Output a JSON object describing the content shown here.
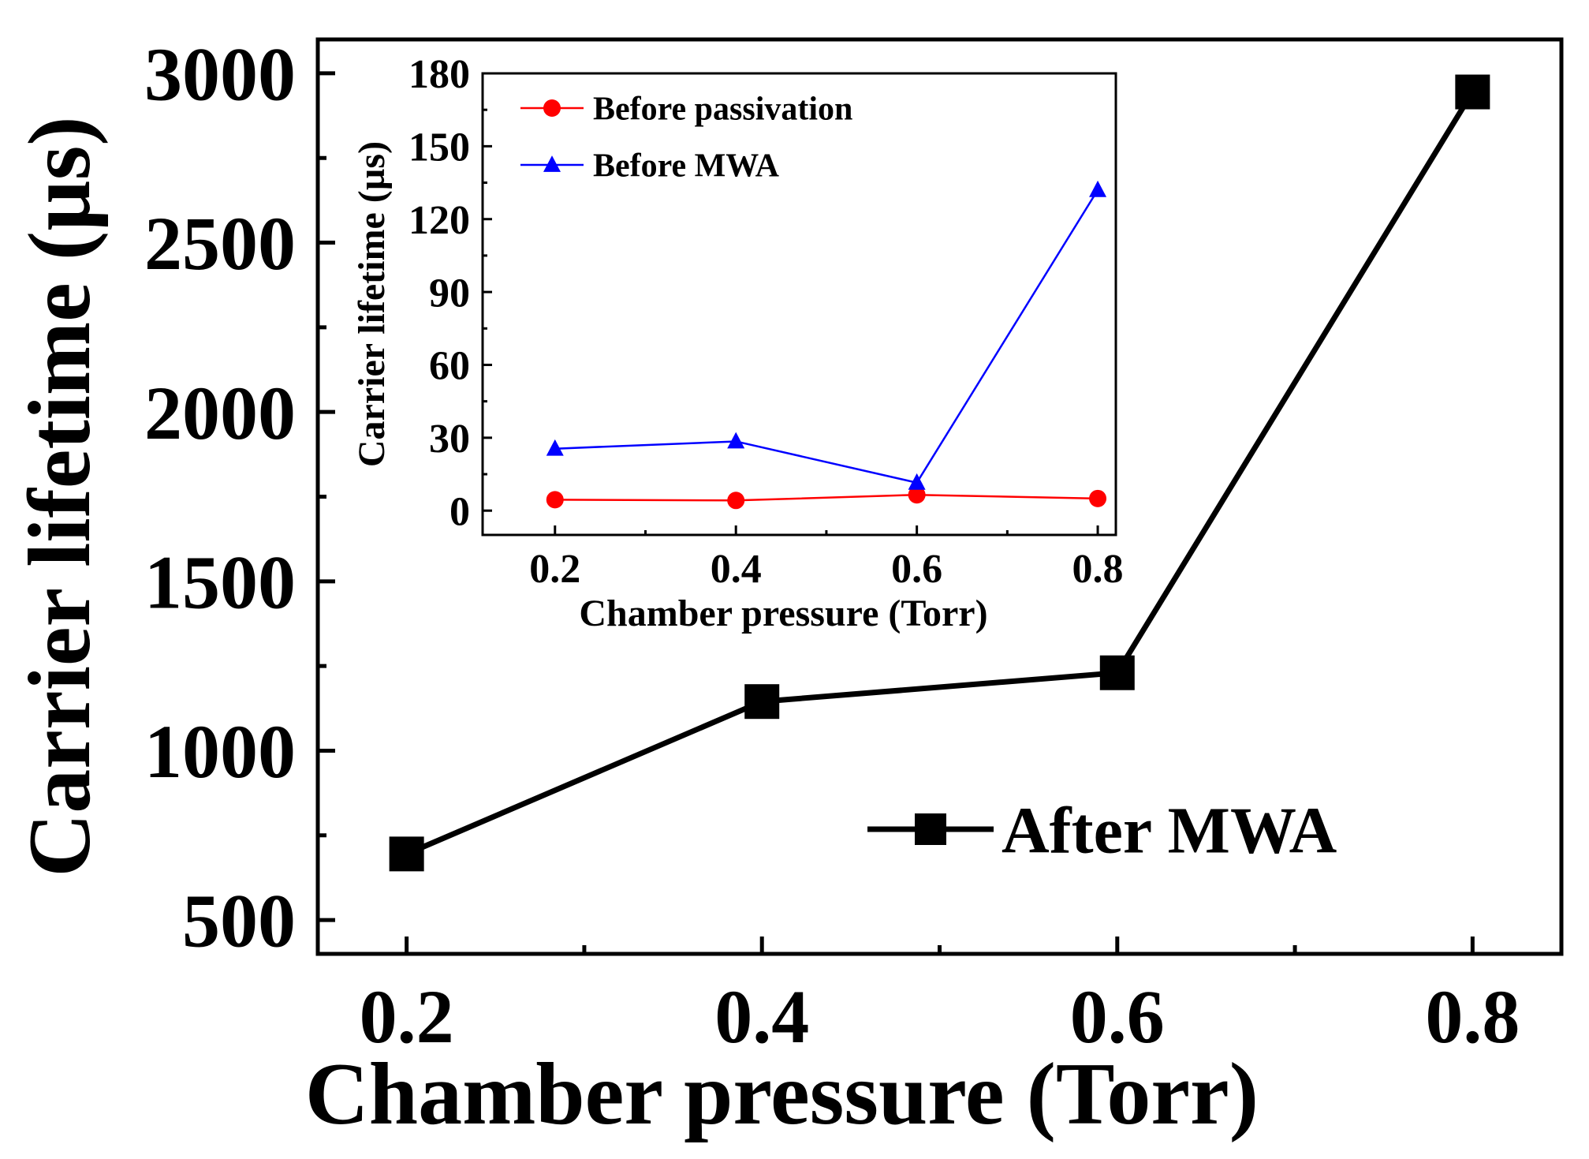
{
  "chart_data": [
    {
      "id": "main",
      "type": "line",
      "xlabel": "Chamber pressure (Torr)",
      "ylabel": "Carrier lifetime (µs)",
      "xlim": [
        0.15,
        0.85
      ],
      "ylim": [
        400,
        3100
      ],
      "xticks": [
        0.2,
        0.4,
        0.6,
        0.8
      ],
      "xtick_labels": [
        "0.2",
        "0.4",
        "0.6",
        "0.8"
      ],
      "yticks": [
        500,
        1000,
        1500,
        2000,
        2500,
        3000
      ],
      "ytick_labels": [
        "500",
        "1000",
        "1500",
        "2000",
        "2500",
        "3000"
      ],
      "legend_position": "center-right",
      "series": [
        {
          "name": "After MWA",
          "color": "#000000",
          "marker": "square",
          "x": [
            0.2,
            0.4,
            0.6,
            0.8
          ],
          "y": [
            695,
            1145,
            1230,
            2945
          ]
        }
      ]
    },
    {
      "id": "inset",
      "type": "line",
      "xlabel": "Chamber pressure (Torr)",
      "ylabel": "Carrier lifetime (µs)",
      "xlim": [
        0.12,
        0.82
      ],
      "ylim": [
        -10,
        180
      ],
      "xticks": [
        0.2,
        0.4,
        0.6,
        0.8
      ],
      "xtick_labels": [
        "0.2",
        "0.4",
        "0.6",
        "0.8"
      ],
      "yticks": [
        0,
        30,
        60,
        90,
        120,
        150,
        180
      ],
      "ytick_labels": [
        "0",
        "30",
        "60",
        "90",
        "120",
        "150",
        "180"
      ],
      "legend_position": "top-left",
      "series": [
        {
          "name": "Before passivation",
          "color": "#ff0000",
          "marker": "circle",
          "x": [
            0.2,
            0.4,
            0.6,
            0.8
          ],
          "y": [
            4.5,
            4.2,
            6.5,
            5.0
          ]
        },
        {
          "name": "Before MWA",
          "color": "#0000ff",
          "marker": "triangle",
          "x": [
            0.2,
            0.4,
            0.6,
            0.8
          ],
          "y": [
            25.5,
            28.5,
            11.5,
            132
          ]
        }
      ]
    }
  ]
}
